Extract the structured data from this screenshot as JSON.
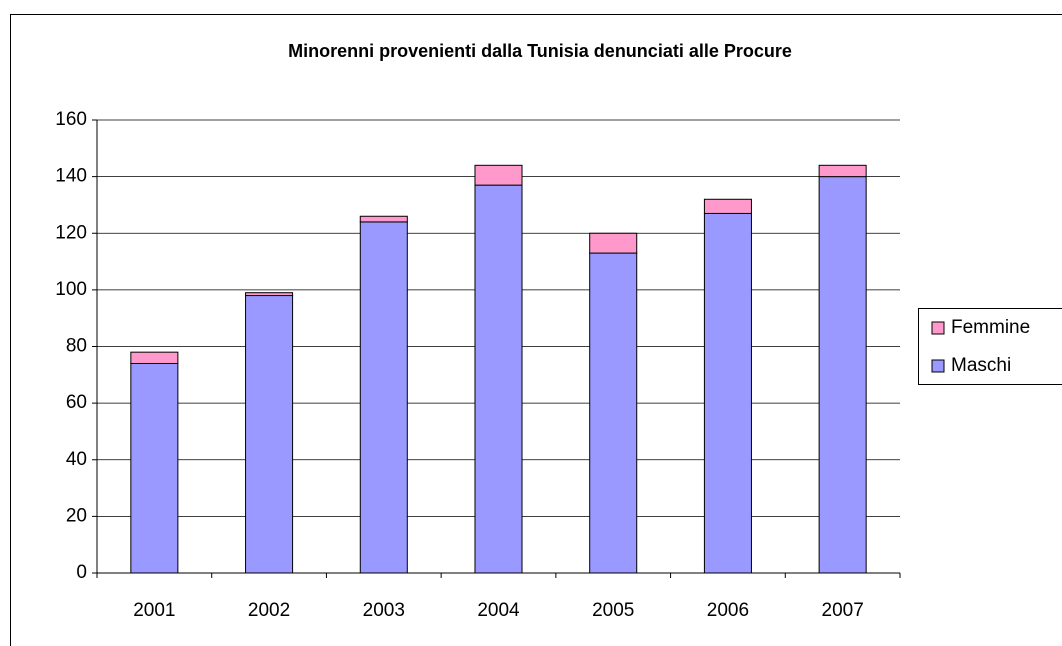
{
  "chart_data": {
    "type": "stacked_bar",
    "title": "Minorenni provenienti dalla Tunisia denunciati alle Procure",
    "categories": [
      "2001",
      "2002",
      "2003",
      "2004",
      "2005",
      "2006",
      "2007"
    ],
    "series": [
      {
        "name": "Maschi",
        "color": "#9999ff",
        "values": [
          74,
          98,
          124,
          137,
          113,
          127,
          140
        ]
      },
      {
        "name": "Femmine",
        "color": "#ff99cc",
        "values": [
          4,
          1,
          2,
          7,
          7,
          5,
          4
        ]
      }
    ],
    "ylim": [
      0,
      160
    ],
    "yticks": [
      0,
      20,
      40,
      60,
      80,
      100,
      120,
      140,
      160
    ],
    "grid": true,
    "legend": "right"
  }
}
